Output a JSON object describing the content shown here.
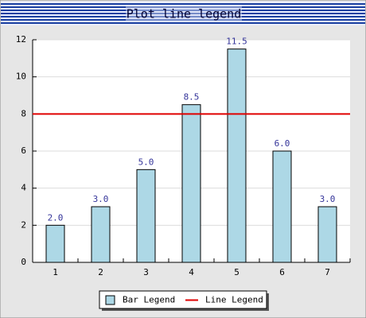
{
  "chart_data": {
    "type": "bar",
    "title": "Plot line legend",
    "categories": [
      "1",
      "2",
      "3",
      "4",
      "5",
      "6",
      "7"
    ],
    "series": [
      {
        "name": "Bar Legend",
        "color": "#add8e6",
        "values": [
          2,
          3,
          5,
          8.5,
          11.5,
          6,
          3
        ],
        "value_labels": [
          "2.0",
          "3.0",
          "5.0",
          "8.5",
          "11.5",
          "6.0",
          "3.0"
        ]
      }
    ],
    "hline": {
      "name": "Line Legend",
      "value": 8,
      "color": "#e00000"
    },
    "ylim": [
      0,
      12
    ],
    "yticks": [
      0,
      2,
      4,
      6,
      8,
      10,
      12
    ],
    "grid": true,
    "legend": "bottom"
  }
}
